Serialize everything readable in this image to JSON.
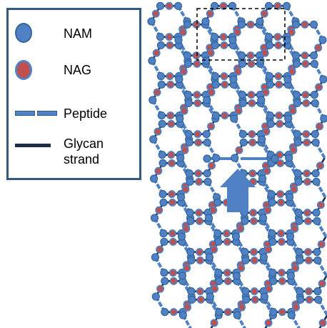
{
  "legend": {
    "nam_label": "NAM",
    "nag_label": "NAG",
    "peptide_label": "Peptide",
    "glycan_label": "Glycan\nstrand"
  },
  "colors": {
    "nam_fill": "#4f81c4",
    "nag_fill": "#c0504d",
    "nag_ring": "#4f81c4",
    "peptide": "#4f81c4",
    "glycan": "#1c2e4a",
    "arrow": "#4f81c4",
    "legend_border": "#34597f"
  },
  "diagram": {
    "highlight_box": "dashed",
    "arrow_direction": "up"
  }
}
